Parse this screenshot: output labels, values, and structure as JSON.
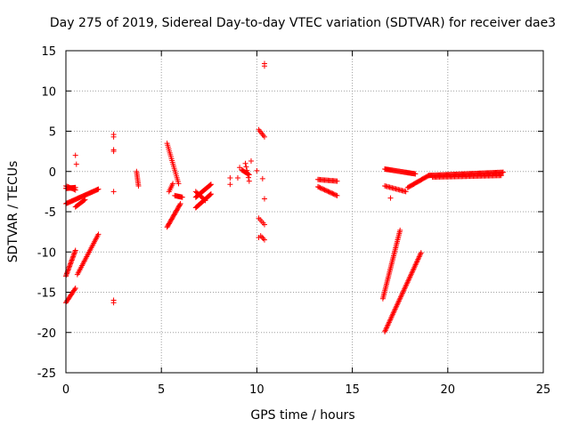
{
  "chart_data": {
    "type": "scatter",
    "title": "Day 275 of 2019, Sidereal Day-to-day VTEC variation (SDTVAR) for receiver dae3",
    "xlabel": "GPS time / hours",
    "ylabel": "SDTVAR / TECUs",
    "xlim": [
      0,
      25
    ],
    "ylim": [
      -25,
      15
    ],
    "xticks": [
      0,
      5,
      10,
      15,
      20,
      25
    ],
    "yticks": [
      -25,
      -20,
      -15,
      -10,
      -5,
      0,
      5,
      10,
      15
    ],
    "grid": true,
    "marker": "+",
    "color": "#ff0000",
    "segments": [
      {
        "x0": 0.0,
        "x1": 0.5,
        "y0": -2.1,
        "y1": -2.0,
        "n": 16
      },
      {
        "x0": 0.0,
        "x1": 0.5,
        "y0": -1.8,
        "y1": -2.3,
        "n": 10
      },
      {
        "x0": 0.0,
        "x1": 1.7,
        "y0": -4.0,
        "y1": -2.2,
        "n": 40
      },
      {
        "x0": 0.5,
        "x1": 1.0,
        "y0": -4.4,
        "y1": -3.5,
        "n": 12
      },
      {
        "x0": 0.0,
        "x1": 0.5,
        "y0": -13.0,
        "y1": -9.8,
        "n": 22
      },
      {
        "x0": 0.6,
        "x1": 1.7,
        "y0": -12.8,
        "y1": -7.8,
        "n": 28
      },
      {
        "x0": 0.0,
        "x1": 0.5,
        "y0": -16.3,
        "y1": -14.5,
        "n": 14
      },
      {
        "x0": 2.5,
        "x1": 2.5,
        "y0": 4.6,
        "y1": 4.3,
        "n": 2
      },
      {
        "x0": 2.5,
        "x1": 2.5,
        "y0": 2.7,
        "y1": 2.5,
        "n": 2
      },
      {
        "x0": 2.5,
        "x1": 2.5,
        "y0": -16.0,
        "y1": -16.3,
        "n": 2
      },
      {
        "x0": 3.7,
        "x1": 3.8,
        "y0": 0.0,
        "y1": -1.8,
        "n": 10
      },
      {
        "x0": 5.3,
        "x1": 5.9,
        "y0": 3.5,
        "y1": -1.5,
        "n": 22
      },
      {
        "x0": 5.4,
        "x1": 5.6,
        "y0": -2.5,
        "y1": -1.5,
        "n": 6
      },
      {
        "x0": 5.7,
        "x1": 6.1,
        "y0": -3.0,
        "y1": -3.2,
        "n": 10
      },
      {
        "x0": 5.3,
        "x1": 6.0,
        "y0": -6.9,
        "y1": -4.0,
        "n": 22
      },
      {
        "x0": 6.8,
        "x1": 7.6,
        "y0": -3.2,
        "y1": -1.6,
        "n": 24
      },
      {
        "x0": 6.8,
        "x1": 7.6,
        "y0": -4.5,
        "y1": -2.8,
        "n": 24
      },
      {
        "x0": 6.8,
        "x1": 7.3,
        "y0": -2.5,
        "y1": -3.6,
        "n": 10
      },
      {
        "x0": 9.2,
        "x1": 9.6,
        "y0": 0.2,
        "y1": -0.4,
        "n": 10
      },
      {
        "x0": 9.4,
        "x1": 9.6,
        "y0": 1.0,
        "y1": -1.2,
        "n": 6
      },
      {
        "x0": 10.1,
        "x1": 10.4,
        "y0": 5.2,
        "y1": 4.3,
        "n": 6
      },
      {
        "x0": 10.1,
        "x1": 10.4,
        "y0": -5.8,
        "y1": -6.6,
        "n": 5
      },
      {
        "x0": 10.2,
        "x1": 10.4,
        "y0": -8.0,
        "y1": -8.5,
        "n": 4
      },
      {
        "x0": 13.2,
        "x1": 14.2,
        "y0": -1.0,
        "y1": -1.2,
        "n": 18
      },
      {
        "x0": 13.2,
        "x1": 14.2,
        "y0": -1.9,
        "y1": -3.0,
        "n": 18
      },
      {
        "x0": 16.7,
        "x1": 18.3,
        "y0": 0.3,
        "y1": -0.3,
        "n": 36
      },
      {
        "x0": 16.7,
        "x1": 17.8,
        "y0": -1.8,
        "y1": -2.5,
        "n": 18
      },
      {
        "x0": 17.9,
        "x1": 19.0,
        "y0": -2.0,
        "y1": -0.5,
        "n": 22
      },
      {
        "x0": 19.0,
        "x1": 22.9,
        "y0": -0.5,
        "y1": -0.1,
        "n": 80
      },
      {
        "x0": 19.2,
        "x1": 22.8,
        "y0": -0.7,
        "y1": -0.5,
        "n": 60
      },
      {
        "x0": 16.6,
        "x1": 17.5,
        "y0": -15.8,
        "y1": -7.3,
        "n": 44
      },
      {
        "x0": 16.7,
        "x1": 18.6,
        "y0": -19.9,
        "y1": -10.1,
        "n": 60
      }
    ],
    "points": [
      {
        "x": 0.5,
        "y": 2.0
      },
      {
        "x": 0.55,
        "y": 0.9
      },
      {
        "x": 2.5,
        "y": -2.5
      },
      {
        "x": 9.0,
        "y": -0.8
      },
      {
        "x": 9.1,
        "y": 0.5
      },
      {
        "x": 8.6,
        "y": -0.8
      },
      {
        "x": 8.6,
        "y": -1.6
      },
      {
        "x": 9.7,
        "y": 1.3
      },
      {
        "x": 10.0,
        "y": 0.1
      },
      {
        "x": 10.3,
        "y": -0.9
      },
      {
        "x": 10.4,
        "y": 13.1
      },
      {
        "x": 10.4,
        "y": 13.4
      },
      {
        "x": 10.4,
        "y": -3.4
      },
      {
        "x": 10.1,
        "y": -8.2
      },
      {
        "x": 17.0,
        "y": -3.3
      }
    ]
  }
}
